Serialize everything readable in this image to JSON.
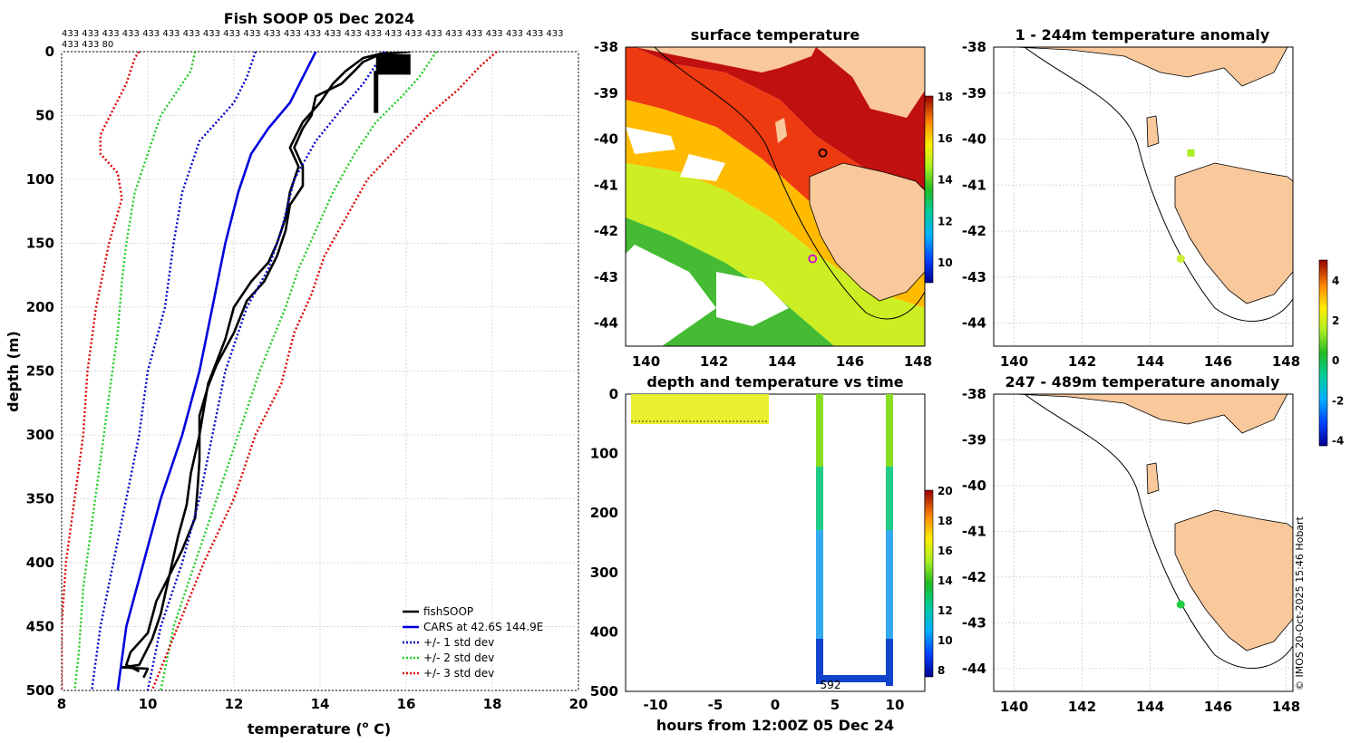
{
  "chart_data": [
    {
      "type": "line",
      "title": "Fish SOOP 05 Dec 2024",
      "subtitle_lines": [
        "433 433 433 433 433 433 433 433 433 433 433 433 433 433 433 433 433 433 433 433 433 433 433 433 433",
        "433 433 80"
      ],
      "xlabel": "temperature (",
      "xlabel_sup": "o",
      "xlabel_end": " C)",
      "ylabel": "depth (m)",
      "xlim": [
        8,
        20
      ],
      "ylim": [
        500,
        0
      ],
      "xticks": [
        "8",
        "10",
        "12",
        "14",
        "16",
        "18",
        "20"
      ],
      "yticks": [
        "0",
        "50",
        "100",
        "150",
        "200",
        "250",
        "300",
        "350",
        "400",
        "450",
        "500"
      ],
      "legend": [
        "fishSOOP",
        "CARS at 42.6S 144.9E",
        "+/- 1 std dev",
        "+/- 2 std dev",
        "+/- 3 std dev"
      ],
      "series": [
        {
          "name": "fishSOOP (profile A)",
          "color": "#000000",
          "points": [
            [
              16.1,
              0
            ],
            [
              15.4,
              2
            ],
            [
              15.0,
              8
            ],
            [
              14.8,
              15
            ],
            [
              14.5,
              25
            ],
            [
              14.2,
              30
            ],
            [
              13.9,
              35
            ],
            [
              13.8,
              50
            ],
            [
              13.6,
              60
            ],
            [
              13.4,
              75
            ],
            [
              13.6,
              90
            ],
            [
              13.6,
              105
            ],
            [
              13.3,
              120
            ],
            [
              13.2,
              140
            ],
            [
              13.0,
              160
            ],
            [
              12.7,
              180
            ],
            [
              12.3,
              195
            ],
            [
              12.0,
              220
            ],
            [
              11.6,
              245
            ],
            [
              11.4,
              262
            ],
            [
              11.2,
              285
            ],
            [
              11.2,
              320
            ],
            [
              11.15,
              345
            ],
            [
              11.1,
              365
            ],
            [
              10.8,
              390
            ],
            [
              10.5,
              410
            ],
            [
              10.3,
              440
            ],
            [
              10.1,
              460
            ],
            [
              9.8,
              480
            ],
            [
              9.4,
              482
            ],
            [
              10.0,
              483
            ],
            [
              9.9,
              490
            ]
          ]
        },
        {
          "name": "fishSOOP (profile B)",
          "color": "#000000",
          "points": [
            [
              15.6,
              0
            ],
            [
              15.0,
              5
            ],
            [
              14.6,
              15
            ],
            [
              14.3,
              25
            ],
            [
              14.0,
              40
            ],
            [
              13.6,
              55
            ],
            [
              13.3,
              75
            ],
            [
              13.5,
              90
            ],
            [
              13.3,
              110
            ],
            [
              13.2,
              130
            ],
            [
              13.0,
              150
            ],
            [
              12.8,
              165
            ],
            [
              12.4,
              180
            ],
            [
              12.0,
              200
            ],
            [
              11.8,
              225
            ],
            [
              11.4,
              260
            ],
            [
              11.2,
              300
            ],
            [
              11.0,
              330
            ],
            [
              10.9,
              355
            ],
            [
              10.7,
              380
            ],
            [
              10.5,
              410
            ],
            [
              10.2,
              430
            ],
            [
              10.0,
              455
            ],
            [
              9.6,
              470
            ],
            [
              9.5,
              480
            ],
            [
              9.8,
              485
            ]
          ]
        },
        {
          "name": "CARS at 42.6S 144.9E",
          "color": "#0000dd",
          "points": [
            [
              13.9,
              0
            ],
            [
              13.6,
              20
            ],
            [
              13.3,
              40
            ],
            [
              12.8,
              60
            ],
            [
              12.4,
              80
            ],
            [
              12.1,
              110
            ],
            [
              11.8,
              150
            ],
            [
              11.5,
              200
            ],
            [
              11.2,
              250
            ],
            [
              10.8,
              300
            ],
            [
              10.3,
              350
            ],
            [
              9.9,
              400
            ],
            [
              9.5,
              450
            ],
            [
              9.3,
              500
            ]
          ]
        },
        {
          "name": "+1 std dev",
          "color": "#0000cc",
          "dotted": true,
          "points": [
            [
              15.5,
              0
            ],
            [
              15.0,
              25
            ],
            [
              14.5,
              45
            ],
            [
              13.9,
              70
            ],
            [
              13.4,
              100
            ],
            [
              13.1,
              140
            ],
            [
              12.8,
              170
            ],
            [
              12.3,
              200
            ],
            [
              11.8,
              250
            ],
            [
              11.5,
              300
            ],
            [
              11.2,
              350
            ],
            [
              10.8,
              400
            ],
            [
              10.3,
              450
            ],
            [
              10.0,
              500
            ]
          ]
        },
        {
          "name": "-1 std dev",
          "color": "#0000cc",
          "dotted": true,
          "points": [
            [
              12.5,
              0
            ],
            [
              12.3,
              20
            ],
            [
              12.0,
              40
            ],
            [
              11.6,
              55
            ],
            [
              11.2,
              70
            ],
            [
              11.0,
              90
            ],
            [
              10.8,
              110
            ],
            [
              10.6,
              150
            ],
            [
              10.4,
              200
            ],
            [
              10.0,
              250
            ],
            [
              9.8,
              300
            ],
            [
              9.5,
              350
            ],
            [
              9.2,
              400
            ],
            [
              8.9,
              450
            ],
            [
              8.7,
              500
            ]
          ]
        },
        {
          "name": "+2 std dev",
          "color": "#22cc22",
          "dotted": true,
          "points": [
            [
              16.7,
              0
            ],
            [
              16.3,
              20
            ],
            [
              15.9,
              35
            ],
            [
              15.3,
              55
            ],
            [
              14.8,
              80
            ],
            [
              14.3,
              110
            ],
            [
              13.9,
              140
            ],
            [
              13.5,
              170
            ],
            [
              13.2,
              200
            ],
            [
              12.6,
              250
            ],
            [
              12.1,
              300
            ],
            [
              11.6,
              350
            ],
            [
              11.1,
              400
            ],
            [
              10.6,
              450
            ],
            [
              10.3,
              500
            ]
          ]
        },
        {
          "name": "-2 std dev",
          "color": "#22cc22",
          "dotted": true,
          "points": [
            [
              11.1,
              0
            ],
            [
              11.0,
              15
            ],
            [
              10.6,
              35
            ],
            [
              10.3,
              50
            ],
            [
              10.1,
              70
            ],
            [
              9.9,
              90
            ],
            [
              9.7,
              110
            ],
            [
              9.6,
              130
            ],
            [
              9.5,
              150
            ],
            [
              9.4,
              180
            ],
            [
              9.3,
              220
            ],
            [
              9.1,
              270
            ],
            [
              8.9,
              320
            ],
            [
              8.7,
              370
            ],
            [
              8.5,
              420
            ],
            [
              8.4,
              470
            ],
            [
              8.3,
              500
            ]
          ]
        },
        {
          "name": "+3 std dev",
          "color": "#dd0000",
          "dotted": true,
          "points": [
            [
              18.1,
              0
            ],
            [
              17.7,
              12
            ],
            [
              17.2,
              30
            ],
            [
              16.5,
              50
            ],
            [
              15.8,
              75
            ],
            [
              15.1,
              100
            ],
            [
              14.6,
              130
            ],
            [
              14.1,
              160
            ],
            [
              13.8,
              190
            ],
            [
              13.4,
              220
            ],
            [
              13.1,
              260
            ],
            [
              12.5,
              300
            ],
            [
              12.0,
              350
            ],
            [
              11.3,
              400
            ],
            [
              10.7,
              450
            ],
            [
              10.1,
              500
            ]
          ]
        },
        {
          "name": "-3 std dev",
          "color": "#dd0000",
          "dotted": true,
          "points": [
            [
              9.8,
              0
            ],
            [
              9.7,
              5
            ],
            [
              9.5,
              25
            ],
            [
              9.2,
              45
            ],
            [
              8.9,
              65
            ],
            [
              8.9,
              80
            ],
            [
              9.3,
              95
            ],
            [
              9.4,
              115
            ],
            [
              9.1,
              150
            ],
            [
              8.8,
              200
            ],
            [
              8.6,
              250
            ],
            [
              8.5,
              300
            ],
            [
              8.3,
              350
            ],
            [
              8.1,
              400
            ],
            [
              8.0,
              450
            ],
            [
              8.0,
              500
            ]
          ]
        }
      ]
    },
    {
      "type": "heatmap",
      "title": "surface temperature",
      "xlim": [
        139.4,
        148.2
      ],
      "ylim": [
        -44.5,
        -38
      ],
      "xticks": [
        "140",
        "142",
        "144",
        "146",
        "148"
      ],
      "yticks": [
        "-38",
        "-39",
        "-40",
        "-41",
        "-42",
        "-43",
        "-44"
      ],
      "colorbar": {
        "range": [
          9,
          18
        ],
        "ticks": [
          "10",
          "12",
          "14",
          "16",
          "18"
        ]
      },
      "markers": [
        {
          "lon": 145.2,
          "lat": -40.3,
          "style": "black-ring"
        },
        {
          "lon": 144.9,
          "lat": -42.6,
          "style": "magenta-ring"
        }
      ]
    },
    {
      "type": "scatter",
      "title": "1 - 244m temperature anomaly",
      "xlim": [
        139.4,
        148.2
      ],
      "ylim": [
        -44.5,
        -38
      ],
      "xticks": [
        "140",
        "142",
        "144",
        "146",
        "148"
      ],
      "yticks": [
        "-38",
        "-39",
        "-40",
        "-41",
        "-42",
        "-43",
        "-44"
      ],
      "points": [
        {
          "lon": 145.2,
          "lat": -40.3,
          "anomaly": 2.5
        },
        {
          "lon": 144.9,
          "lat": -42.6,
          "anomaly": 2.2
        }
      ],
      "colorbar": {
        "range": [
          -4.3,
          5
        ],
        "ticks": [
          "4",
          "2",
          "0",
          "-2",
          "-4"
        ]
      }
    },
    {
      "type": "scatter",
      "title": "247 - 489m temperature anomaly",
      "xlim": [
        139.4,
        148.2
      ],
      "ylim": [
        -44.5,
        -38
      ],
      "xticks": [
        "140",
        "142",
        "144",
        "146",
        "148"
      ],
      "yticks": [
        "-38",
        "-39",
        "-40",
        "-41",
        "-42",
        "-43",
        "-44"
      ],
      "points": [
        {
          "lon": 144.9,
          "lat": -42.6,
          "anomaly": 0.4
        }
      ]
    },
    {
      "type": "scatter",
      "title": "depth and temperature vs time",
      "xlabel": "hours from 12:00Z 05 Dec 24",
      "xlim": [
        -12.5,
        12.5
      ],
      "ylim": [
        500,
        0
      ],
      "xticks": [
        "-10",
        "-5",
        "0",
        "5",
        "10"
      ],
      "yticks": [
        "0",
        "100",
        "200",
        "300",
        "400",
        "500"
      ],
      "annotation": "592",
      "colorbar": {
        "range": [
          7.5,
          20
        ],
        "ticks": [
          "20",
          "18",
          "16",
          "14",
          "12",
          "10",
          "8"
        ]
      }
    }
  ],
  "credit": "© IMOS 20-Oct-2025 15:46 Hobart"
}
